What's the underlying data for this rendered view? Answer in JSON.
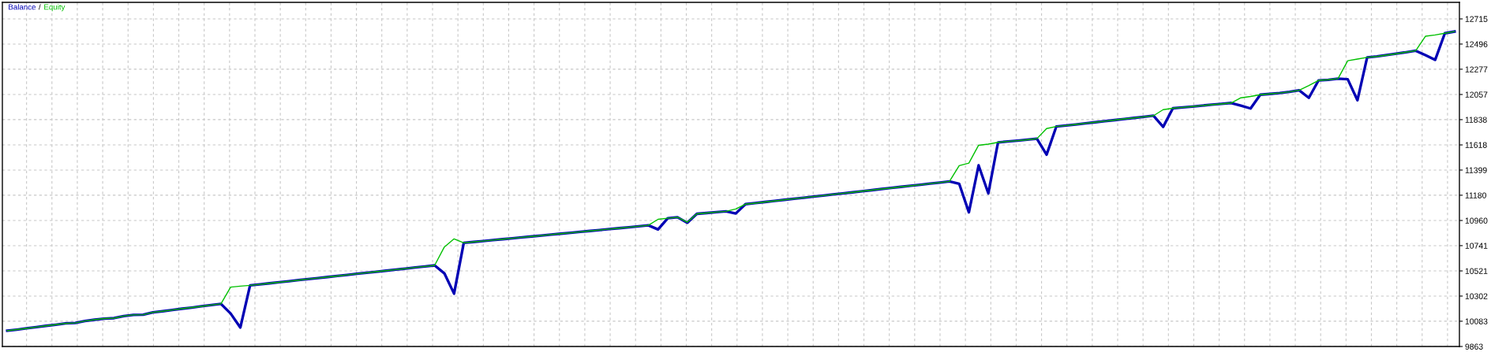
{
  "chart_data": {
    "type": "line",
    "categories": [
      null,
      null,
      null,
      null,
      null,
      null,
      null,
      null,
      null,
      null,
      null,
      null,
      null,
      null,
      null,
      null,
      null,
      null,
      null,
      null,
      null,
      null,
      null,
      null,
      null,
      null,
      null,
      null,
      null,
      null,
      null,
      null,
      null,
      null,
      null,
      null,
      null,
      null,
      null,
      null,
      null,
      null,
      null,
      null,
      null,
      null,
      null,
      null,
      null,
      null,
      null,
      null,
      null,
      null,
      null,
      null,
      null,
      null,
      null,
      null,
      null,
      null,
      null,
      null,
      null,
      null,
      null,
      null,
      null,
      null,
      null,
      null,
      null,
      null,
      null,
      null,
      null,
      null,
      null,
      null,
      null,
      null,
      null,
      null,
      null,
      null,
      null,
      null,
      null,
      null,
      null,
      null,
      null,
      null,
      null,
      null,
      null,
      null,
      null,
      null,
      null,
      null,
      null,
      null,
      null,
      null,
      null,
      null,
      null,
      null,
      null,
      null,
      null,
      null,
      null,
      null,
      null,
      null,
      null,
      null,
      null,
      null,
      null,
      null,
      null,
      null,
      null,
      null,
      null,
      null,
      null,
      null,
      null,
      null,
      null,
      null,
      null,
      null,
      null,
      null,
      null,
      null,
      null,
      null,
      null,
      null,
      null,
      null,
      null,
      null
    ],
    "series": [
      {
        "name": "Balance",
        "color": "#0000b4",
        "values": [
          10000,
          10010,
          10021,
          10032,
          10043,
          10053,
          10064,
          10068,
          10085,
          10096,
          10106,
          10110,
          10128,
          10138,
          10140,
          10160,
          10170,
          10181,
          10192,
          10202,
          10213,
          10224,
          10234,
          10150,
          10028,
          10395,
          10404,
          10413,
          10422,
          10431,
          10441,
          10450,
          10459,
          10468,
          10477,
          10486,
          10496,
          10505,
          10514,
          10523,
          10532,
          10541,
          10551,
          10560,
          10569,
          10500,
          10323,
          10765,
          10773,
          10781,
          10789,
          10797,
          10805,
          10813,
          10821,
          10829,
          10837,
          10845,
          10853,
          10861,
          10869,
          10877,
          10885,
          10893,
          10901,
          10909,
          10918,
          10882,
          10980,
          10988,
          10940,
          11018,
          11025,
          11033,
          11040,
          11021,
          11102,
          11111,
          11121,
          11130,
          11140,
          11149,
          11158,
          11168,
          11177,
          11187,
          11196,
          11205,
          11215,
          11224,
          11234,
          11243,
          11253,
          11262,
          11271,
          11281,
          11290,
          11300,
          11280,
          11031,
          11440,
          11196,
          11640,
          11648,
          11655,
          11663,
          11672,
          11533,
          11778,
          11787,
          11796,
          11806,
          11815,
          11825,
          11834,
          11844,
          11853,
          11862,
          11872,
          11775,
          11937,
          11945,
          11952,
          11960,
          11968,
          11975,
          11983,
          11960,
          11935,
          12055,
          12062,
          12070,
          12080,
          12094,
          12028,
          12180,
          12185,
          12195,
          12190,
          12007,
          12380,
          12388,
          12400,
          12412,
          12425,
          12438,
          12400,
          12358,
          12590,
          12605
        ]
      },
      {
        "name": "Equity",
        "color": "#00c000",
        "values": [
          10000,
          10010,
          10021,
          10032,
          10043,
          10053,
          10064,
          10068,
          10085,
          10096,
          10106,
          10110,
          10128,
          10138,
          10140,
          10160,
          10170,
          10181,
          10192,
          10202,
          10213,
          10224,
          10234,
          10380,
          10388,
          10395,
          10404,
          10413,
          10422,
          10431,
          10441,
          10450,
          10459,
          10468,
          10477,
          10486,
          10496,
          10505,
          10514,
          10523,
          10532,
          10541,
          10551,
          10560,
          10569,
          10729,
          10800,
          10765,
          10773,
          10781,
          10789,
          10797,
          10805,
          10813,
          10821,
          10829,
          10837,
          10845,
          10853,
          10861,
          10869,
          10877,
          10885,
          10893,
          10901,
          10909,
          10918,
          10970,
          10980,
          10988,
          10945,
          11018,
          11025,
          11033,
          11040,
          11060,
          11102,
          11111,
          11121,
          11130,
          11140,
          11149,
          11158,
          11168,
          11177,
          11187,
          11196,
          11205,
          11215,
          11224,
          11234,
          11243,
          11253,
          11262,
          11271,
          11281,
          11290,
          11300,
          11437,
          11460,
          11615,
          11625,
          11640,
          11648,
          11655,
          11663,
          11672,
          11760,
          11778,
          11787,
          11796,
          11806,
          11815,
          11825,
          11834,
          11844,
          11853,
          11862,
          11872,
          11925,
          11937,
          11945,
          11952,
          11960,
          11968,
          11975,
          11983,
          12028,
          12040,
          12055,
          12062,
          12070,
          12080,
          12094,
          12135,
          12180,
          12185,
          12195,
          12351,
          12365,
          12380,
          12388,
          12400,
          12412,
          12425,
          12438,
          12564,
          12575,
          12590,
          12605
        ]
      }
    ],
    "ylim": [
      9863,
      12859
    ],
    "yticks": [
      9863,
      10083,
      10302,
      10521,
      10741,
      10960,
      11180,
      11399,
      11618,
      11838,
      12057,
      12277,
      12496,
      12715
    ],
    "annotations": [
      "/"
    ],
    "grid": true,
    "legend": "top left",
    "tick_labels": "y",
    "marker": "none",
    "line_style": "solid"
  }
}
